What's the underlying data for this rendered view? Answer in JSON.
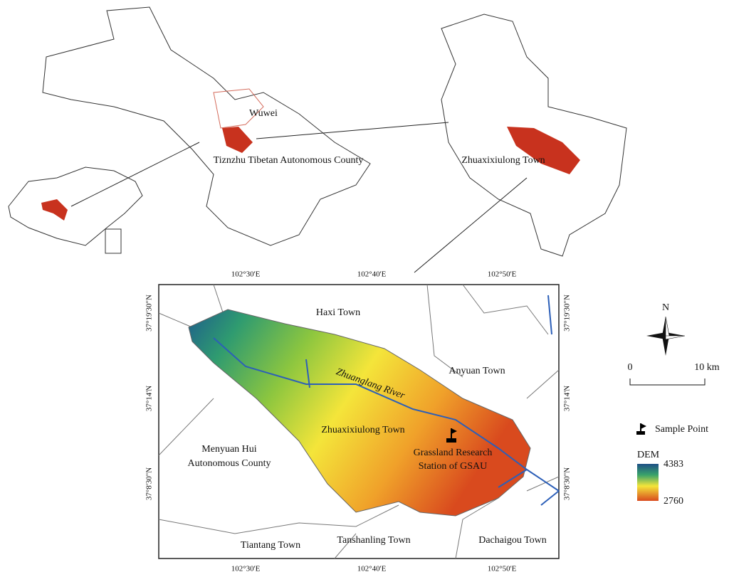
{
  "overview_maps": {
    "labels": [
      "Wuwei",
      "Tiznzhu Tibetan Autonomous County",
      "Zhuaxixiulong Town"
    ]
  },
  "main_map": {
    "top_longitudes": [
      "102°30'E",
      "102°40'E",
      "102°50'E"
    ],
    "bottom_longitudes": [
      "102°30'E",
      "102°40'E",
      "102°50'E"
    ],
    "left_latitudes": [
      "37°19'30\"N",
      "37°14'N",
      "37°8'30\"N"
    ],
    "right_latitudes": [
      "37°19'30\"N",
      "37°14'N",
      "37°8'30\"N"
    ],
    "places": [
      "Haxi Town",
      "Anyuan Town",
      "Zhuanglang River",
      "Zhuaxixiulong Town",
      "Tiantang Town",
      "Tanshanling Town",
      "Dachaigou Town"
    ],
    "menyuan_label": [
      "Menyuan Hui",
      "Autonomous County"
    ],
    "station_label": [
      "Grassland Research",
      "Station of GSAU"
    ]
  },
  "legend": {
    "north": "N",
    "scale": [
      "0",
      "10 km"
    ],
    "sample_point": "Sample Point",
    "dem": {
      "title": "DEM",
      "max": 4383,
      "min": 2760
    }
  }
}
